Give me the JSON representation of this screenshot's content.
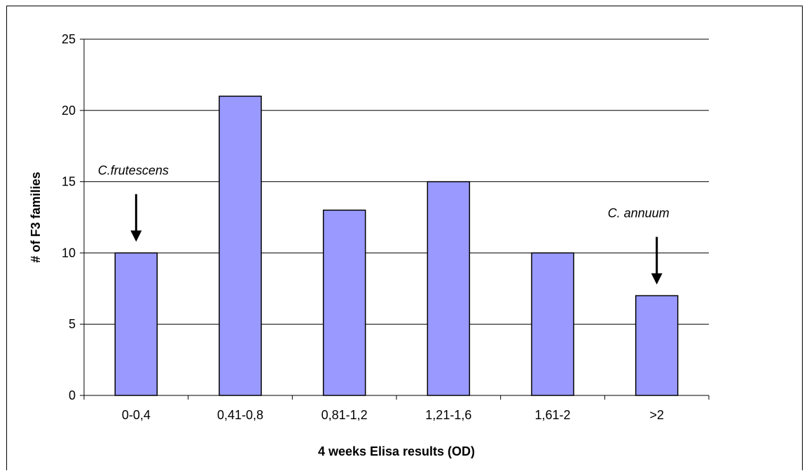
{
  "chart_data": {
    "type": "bar",
    "categories": [
      "0-0,4",
      "0,41-0,8",
      "0,81-1,2",
      "1,21-1,6",
      "1,61-2",
      ">2"
    ],
    "values": [
      10,
      21,
      13,
      15,
      10,
      7
    ],
    "xlabel": "4 weeks Elisa results (OD)",
    "ylabel": "# of F3 families",
    "ylim": [
      0,
      25
    ],
    "yticks": [
      0,
      5,
      10,
      15,
      20,
      25
    ],
    "grid": true,
    "bar_color": "#9999ff",
    "annotations": [
      {
        "text": "C.frutescens",
        "category_index": 0
      },
      {
        "text": "C. annuum",
        "category_index": 5
      }
    ]
  }
}
